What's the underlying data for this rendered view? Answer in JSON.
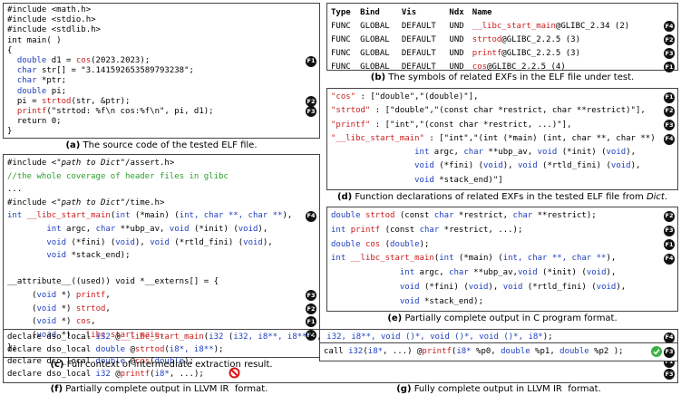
{
  "panels": [
    {
      "lines": [
        {
          "segs": [
            "#include <math.h>"
          ]
        },
        {
          "segs": [
            "#include <stdio.h>"
          ]
        },
        {
          "segs": [
            "#include <stdlib.h>"
          ]
        },
        {
          "segs": [
            "int main( )"
          ]
        },
        {
          "segs": [
            "{"
          ]
        },
        {
          "segs": [
            "  ",
            [
              "double",
              "k"
            ],
            " d1 = ",
            [
              "cos",
              "f"
            ],
            "(2023.2023);"
          ],
          "badge": "F1"
        },
        {
          "segs": [
            "  ",
            [
              "char",
              "k"
            ],
            " str[] = \"3.141592653589793238\";"
          ]
        },
        {
          "segs": [
            "  ",
            [
              "char",
              "k"
            ],
            " *ptr;"
          ]
        },
        {
          "segs": [
            "  ",
            [
              "double",
              "k"
            ],
            " pi;"
          ]
        },
        {
          "segs": [
            "  pi = ",
            [
              "strtod",
              "f"
            ],
            "(str, &ptr);"
          ],
          "badge": "F2"
        },
        {
          "segs": [
            "  ",
            [
              "printf",
              "f"
            ],
            "(\"strtod: %f\\n cos:%f\\n\", pi, d1);"
          ],
          "badge": "F3"
        },
        {
          "segs": [
            "  return 0;"
          ]
        },
        {
          "segs": [
            "}"
          ]
        }
      ],
      "caption": [
        [
          "(a)",
          "b"
        ],
        " The source code of the tested ELF file."
      ]
    },
    {
      "lines": [
        {
          "segs": [
            "#include <",
            [
              "\"path to Dict\"",
              "i"
            ],
            "/assert.h>"
          ]
        },
        {
          "segs": [
            [
              "//the whole coverage of header files in glibc",
              "g"
            ]
          ]
        },
        {
          "segs": [
            "..."
          ]
        },
        {
          "segs": [
            "#include <",
            [
              "\"path to Dict\"",
              "i"
            ],
            "/time.h>"
          ]
        },
        {
          "segs": [
            [
              "int",
              "k"
            ],
            " ",
            [
              "__libc_start_main",
              "f"
            ],
            "(",
            [
              "int",
              "k"
            ],
            " (*main) (",
            [
              "int, char **, char **",
              "k"
            ],
            "),"
          ],
          "badge": "F4"
        },
        {
          "segs": [
            "        ",
            [
              "int",
              "k"
            ],
            " argc, ",
            [
              "char",
              "k"
            ],
            " **ubp_av, ",
            [
              "void",
              "k"
            ],
            " (*init) (",
            [
              "void",
              "k"
            ],
            "),"
          ]
        },
        {
          "segs": [
            "        ",
            [
              "void",
              "k"
            ],
            " (*fini) (",
            [
              "void",
              "k"
            ],
            "), ",
            [
              "void",
              "k"
            ],
            " (*rtld_fini) (",
            [
              "void",
              "k"
            ],
            "),"
          ]
        },
        {
          "segs": [
            "        ",
            [
              "void",
              "k"
            ],
            " *stack_end);"
          ]
        },
        {
          "segs": [
            " "
          ]
        },
        {
          "segs": [
            "__attribute__((used)) void *__externs[] = {"
          ]
        },
        {
          "segs": [
            "     (",
            [
              "void",
              "k"
            ],
            " *) ",
            [
              "printf",
              "f"
            ],
            ","
          ],
          "badge": "F3"
        },
        {
          "segs": [
            "     (",
            [
              "void",
              "k"
            ],
            " *) ",
            [
              "strtod",
              "f"
            ],
            ","
          ],
          "badge": "F2"
        },
        {
          "segs": [
            "     (",
            [
              "void",
              "k"
            ],
            " *) ",
            [
              "cos",
              "f"
            ],
            ","
          ],
          "badge": "F1"
        },
        {
          "segs": [
            "     (",
            [
              "void",
              "k"
            ],
            " *) ",
            [
              "__libc_start_main",
              "f"
            ],
            ","
          ],
          "badge": "F4"
        },
        {
          "segs": [
            "};"
          ]
        }
      ],
      "caption": [
        [
          "(c)",
          "b"
        ],
        " Full context of intermediate extraction result."
      ]
    },
    {
      "table": {
        "header": [
          "Type",
          "Bind",
          "Vis",
          "Ndx",
          "Name"
        ],
        "rows": [
          {
            "cells": [
              "FUNC",
              "GLOBAL",
              "DEFAULT",
              "UND",
              [
                [
                  "__libc_start_main",
                  "f"
                ],
                "@GLIBC_2.34 (2)"
              ]
            ],
            "badge": "F4"
          },
          {
            "cells": [
              "FUNC",
              "GLOBAL",
              "DEFAULT",
              "UND",
              [
                [
                  "strtod",
                  "f"
                ],
                "@GLIBC_2.2.5 (3)"
              ]
            ],
            "badge": "F2"
          },
          {
            "cells": [
              "FUNC",
              "GLOBAL",
              "DEFAULT",
              "UND",
              [
                [
                  "printf",
                  "f"
                ],
                "@GLIBC_2.2.5 (3)"
              ]
            ],
            "badge": "F3"
          },
          {
            "cells": [
              "FUNC",
              "GLOBAL",
              "DEFAULT",
              "UND",
              [
                [
                  "cos",
                  "f"
                ],
                "@GLIBC_2.2.5 (4)"
              ]
            ],
            "badge": "F1"
          }
        ]
      },
      "caption": [
        [
          "(b)",
          "b"
        ],
        " The symbols of related EXFs in the ELF file under test."
      ]
    },
    {
      "lines": [
        {
          "segs": [
            [
              "\"cos\"",
              "f"
            ],
            " : [\"double\",\"(double)\"],"
          ],
          "badge": "F1"
        },
        {
          "segs": [
            [
              "\"strtod\"",
              "f"
            ],
            " : [\"double\",\"(const char *restrict, char **restrict)\"],"
          ],
          "badge": "F2"
        },
        {
          "segs": [
            [
              "\"printf\"",
              "f"
            ],
            " : [\"int\",\"(const char *restrict, ...)\"],"
          ],
          "badge": "F3"
        },
        {
          "segs": [
            [
              "\"__libc_start_main\"",
              "f"
            ],
            " : [\"int\",\"(int (*main) (int, char **, char **)"
          ],
          "badge": "F4"
        },
        {
          "segs": [
            "                 ",
            [
              "int",
              "k"
            ],
            " argc, ",
            [
              "char",
              "k"
            ],
            " **ubp_av, ",
            [
              "void",
              "k"
            ],
            " (*init) (",
            [
              "void",
              "k"
            ],
            "),"
          ]
        },
        {
          "segs": [
            "                 ",
            [
              "void",
              "k"
            ],
            " (*fini) (",
            [
              "void",
              "k"
            ],
            "), ",
            [
              "void",
              "k"
            ],
            " (*rtld_fini) (",
            [
              "void",
              "k"
            ],
            "),"
          ]
        },
        {
          "segs": [
            "                 ",
            [
              "void",
              "k"
            ],
            " *stack_end)\"]"
          ]
        }
      ],
      "caption": [
        [
          "(d)",
          "b"
        ],
        " Function declarations of related EXFs in the tested ELF file from ",
        [
          "Dict",
          "i"
        ],
        "."
      ]
    },
    {
      "lines": [
        {
          "segs": [
            [
              "double",
              "k"
            ],
            " ",
            [
              "strtod",
              "f"
            ],
            " (const ",
            [
              "char",
              "k"
            ],
            " *restrict, ",
            [
              "char",
              "k"
            ],
            " **restrict);"
          ],
          "badge": "F2"
        },
        {
          "segs": [
            [
              "int",
              "k"
            ],
            " ",
            [
              "printf",
              "f"
            ],
            " (const ",
            [
              "char",
              "k"
            ],
            " *restrict, ...);"
          ],
          "badge": "F3"
        },
        {
          "segs": [
            [
              "double",
              "k"
            ],
            " ",
            [
              "cos",
              "f"
            ],
            " (",
            [
              "double",
              "k"
            ],
            ");"
          ],
          "badge": "F1"
        },
        {
          "segs": [
            [
              "int",
              "k"
            ],
            " ",
            [
              "__libc_start_main",
              "f"
            ],
            "(",
            [
              "int",
              "k"
            ],
            " (*main) (",
            [
              "int, char **, char **",
              "k"
            ],
            "),"
          ],
          "badge": "F4"
        },
        {
          "segs": [
            "              ",
            [
              "int",
              "k"
            ],
            " argc, ",
            [
              "char",
              "k"
            ],
            " **ubp_av,",
            [
              "void",
              "k"
            ],
            " (*init) (",
            [
              "void",
              "k"
            ],
            "),"
          ]
        },
        {
          "segs": [
            "              ",
            [
              "void",
              "k"
            ],
            " (*fini) (",
            [
              "void",
              "k"
            ],
            "), ",
            [
              "void",
              "k"
            ],
            " (*rtld_fini) (",
            [
              "void",
              "k"
            ],
            "),"
          ]
        },
        {
          "segs": [
            "              ",
            [
              "void",
              "k"
            ],
            " *stack_end);"
          ]
        }
      ],
      "caption": [
        [
          "(e)",
          "b"
        ],
        " Partially complete output in C program format."
      ]
    },
    {
      "lines": [
        {
          "segs": [
            "declare dso_local ",
            [
              "i32",
              "k"
            ],
            " @",
            [
              "__libc_start_main",
              "f"
            ],
            "(",
            [
              "i32",
              "k"
            ],
            " (",
            [
              "i32, i8**, i8**",
              "k"
            ],
            ")*, ",
            [
              "i32, i8**, void ()*, void ()*, void ()*, i8*",
              "k"
            ],
            ");"
          ],
          "badge": "F4"
        },
        {
          "segs": [
            "declare dso_local ",
            [
              "double",
              "k"
            ],
            " @",
            [
              "strtod",
              "f"
            ],
            "(",
            [
              "i8*, i8**",
              "k"
            ],
            ");"
          ],
          "badge": "F2"
        },
        {
          "segs": [
            "declare dso_local ",
            [
              "double",
              "k"
            ],
            " @",
            [
              "cos",
              "f"
            ],
            "(",
            [
              "double",
              "k"
            ],
            ");"
          ],
          "badge": "F1"
        },
        {
          "segs": [
            "declare dso_local ",
            [
              "i32",
              "k"
            ],
            " @",
            [
              "printf",
              "f"
            ],
            "(",
            [
              "i8*",
              "k"
            ],
            ", ...);"
          ],
          "badge": "F3"
        }
      ],
      "caption": [
        [
          "(f)",
          "b"
        ],
        " Partially complete output in LLVM IR  format."
      ]
    },
    {
      "lines": [
        {
          "segs": [
            "call ",
            [
              "i32",
              "k"
            ],
            "(",
            [
              "i8*",
              "k"
            ],
            ", ...) @",
            [
              "printf",
              "f"
            ],
            "(",
            [
              "i8*",
              "k"
            ],
            " %p0, ",
            [
              "double",
              "k"
            ],
            " %p1, ",
            [
              "double",
              "k"
            ],
            " %p2 );"
          ],
          "badge": "F3"
        }
      ],
      "caption": [
        [
          "(g)",
          "b"
        ],
        " Fully complete output in LLVM IR  format."
      ]
    }
  ]
}
